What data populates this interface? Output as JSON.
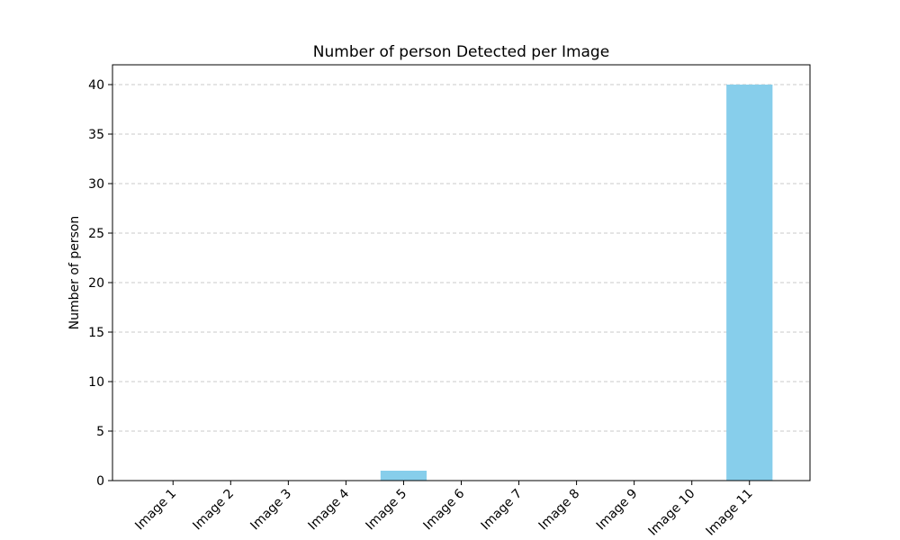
{
  "chart_data": {
    "type": "bar",
    "title": "Number of person Detected per Image",
    "xlabel": "",
    "ylabel": "Number of person",
    "categories": [
      "Image 1",
      "Image 2",
      "Image 3",
      "Image 4",
      "Image 5",
      "Image 6",
      "Image 7",
      "Image 8",
      "Image 9",
      "Image 10",
      "Image 11"
    ],
    "values": [
      0,
      0,
      0,
      0,
      1,
      0,
      0,
      0,
      0,
      0,
      40
    ],
    "ylim": [
      0,
      42
    ],
    "yticks": [
      0,
      5,
      10,
      15,
      20,
      25,
      30,
      35,
      40
    ],
    "grid": "y-dashed",
    "legend": "none",
    "bar_color": "#87ceeb",
    "grid_color": "#c8c8c8"
  }
}
